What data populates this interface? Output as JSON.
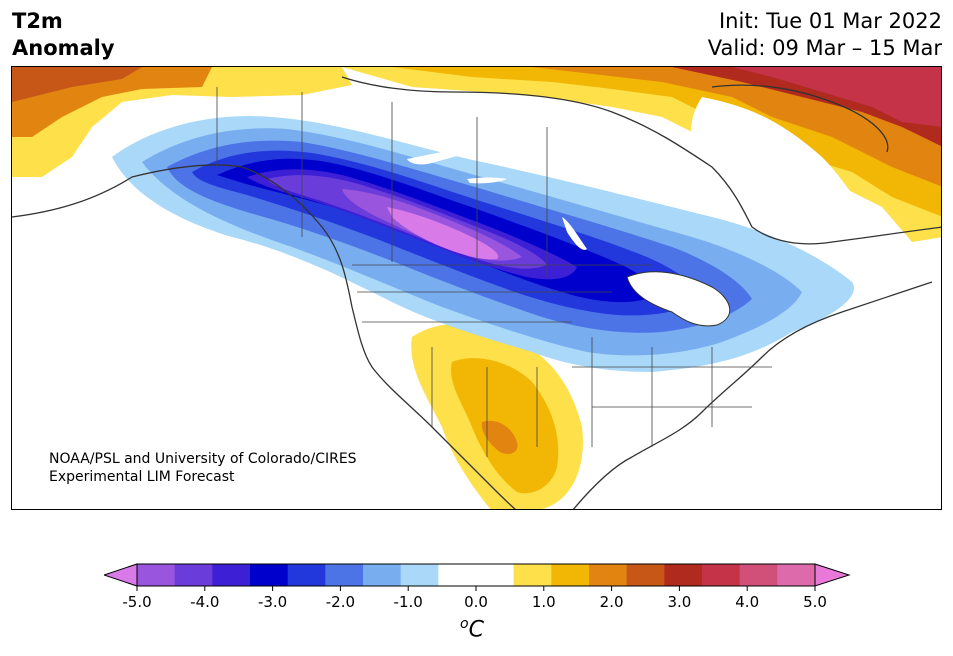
{
  "title": {
    "left_line1": "T2m",
    "left_line2": "Anomaly",
    "init": "Init: Tue 01 Mar 2022",
    "valid": "Valid: 09 Mar – 15 Mar"
  },
  "credit": {
    "line1": "NOAA/PSL and University of Colorado/CIRES",
    "line2": "Experimental LIM Forecast"
  },
  "colorbar": {
    "unit_base": "C",
    "unit_sup": "o",
    "ticks": [
      "-5.0",
      "-4.0",
      "-3.0",
      "-2.0",
      "-1.0",
      "0.0",
      "1.0",
      "2.0",
      "3.0",
      "4.0",
      "5.0"
    ],
    "colors": [
      "#d87ae8",
      "#9955dd",
      "#6a3ddb",
      "#3d1fd6",
      "#0000cc",
      "#2238dd",
      "#4c74e6",
      "#78aef0",
      "#aad8f8",
      "#ffffff",
      "#ffffff",
      "#fde04a",
      "#f2b705",
      "#e28410",
      "#c75717",
      "#b02a1e",
      "#c43348",
      "#d0507a",
      "#dd6aaa",
      "#e879d9"
    ]
  }
}
